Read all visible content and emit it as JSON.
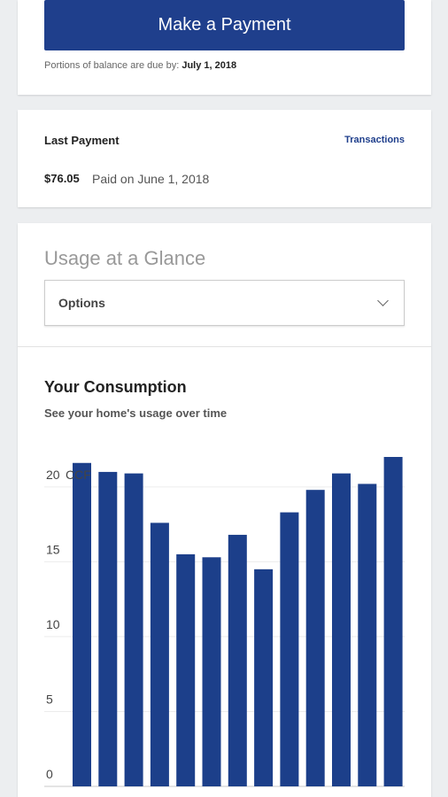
{
  "payment": {
    "button_label": "Make a Payment",
    "due_prefix": "Portions of balance are due by: ",
    "due_date": "July 1, 2018"
  },
  "last_payment": {
    "title": "Last Payment",
    "transactions_link": "Transactions",
    "amount": "$76.05",
    "paid_text": "Paid on June 1, 2018"
  },
  "usage": {
    "title": "Usage at a Glance",
    "select_value": "Options"
  },
  "consumption": {
    "title": "Your Consumption",
    "subtitle": "See your home's usage over time"
  },
  "colors": {
    "brand": "#1f3f8c",
    "bar": "#1c3f8a"
  },
  "chart_data": {
    "type": "bar",
    "unit": "CCF",
    "values": [
      21.6,
      21.0,
      20.9,
      17.6,
      15.5,
      15.3,
      16.8,
      14.5,
      18.3,
      19.8,
      20.9,
      20.2,
      22.0
    ],
    "yticks": [
      0,
      5,
      10,
      15,
      20
    ],
    "ylim": [
      0,
      22
    ]
  }
}
